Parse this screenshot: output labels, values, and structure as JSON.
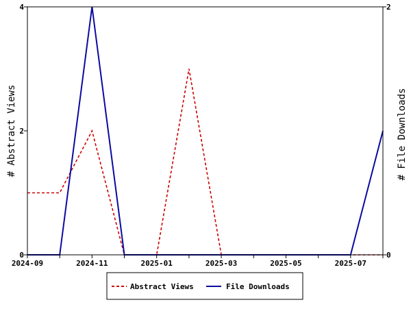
{
  "chart_data": {
    "type": "line",
    "title": "",
    "x": [
      "2024-09",
      "2024-10",
      "2024-11",
      "2024-12",
      "2025-01",
      "2025-02",
      "2025-03",
      "2025-04",
      "2025-05",
      "2025-06",
      "2025-07",
      "2025-08"
    ],
    "x_ticks": [
      "2024-09",
      "2024-11",
      "2025-01",
      "2025-03",
      "2025-05",
      "2025-07"
    ],
    "y_left": {
      "label": "# Abstract Views",
      "range": [
        0,
        4
      ],
      "ticks": [
        "0",
        "2",
        "4"
      ]
    },
    "y_right": {
      "label": "# File Downloads",
      "range": [
        0,
        2
      ],
      "ticks": [
        "0",
        "2"
      ]
    },
    "series": [
      {
        "name": "Abstract Views",
        "axis": "left",
        "style": "dashed",
        "color": "#cc0000",
        "values": [
          1,
          1,
          2,
          0,
          0,
          3,
          0,
          0,
          0,
          0,
          0,
          0
        ]
      },
      {
        "name": "File Downloads",
        "axis": "right",
        "style": "solid",
        "color": "#0a0aa0",
        "values": [
          0,
          0,
          2,
          0,
          0,
          0,
          0,
          0,
          0,
          0,
          0,
          1
        ]
      }
    ],
    "grid": false,
    "legend_position": "bottom"
  }
}
